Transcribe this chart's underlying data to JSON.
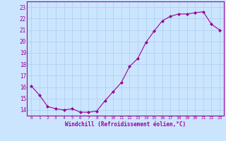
{
  "x": [
    0,
    1,
    2,
    3,
    4,
    5,
    6,
    7,
    8,
    9,
    10,
    11,
    12,
    13,
    14,
    15,
    16,
    17,
    18,
    19,
    20,
    21,
    22,
    23
  ],
  "y": [
    16.1,
    15.3,
    14.3,
    14.1,
    14.0,
    14.1,
    13.8,
    13.8,
    13.9,
    14.8,
    15.6,
    16.4,
    17.8,
    18.5,
    19.9,
    20.9,
    21.8,
    22.2,
    22.4,
    22.4,
    22.5,
    22.6,
    21.5,
    21.0
  ],
  "line_color": "#990099",
  "marker": "D",
  "marker_size": 2,
  "bg_color": "#cce5ff",
  "grid_color": "#aaccee",
  "xlabel": "Windchill (Refroidissement éolien,°C)",
  "xlabel_color": "#990099",
  "tick_color": "#990099",
  "ylim": [
    13.5,
    23.5
  ],
  "xlim": [
    -0.5,
    23.5
  ],
  "yticks": [
    14,
    15,
    16,
    17,
    18,
    19,
    20,
    21,
    22,
    23
  ],
  "xticks": [
    0,
    1,
    2,
    3,
    4,
    5,
    6,
    7,
    8,
    9,
    10,
    11,
    12,
    13,
    14,
    15,
    16,
    17,
    18,
    19,
    20,
    21,
    22,
    23
  ]
}
